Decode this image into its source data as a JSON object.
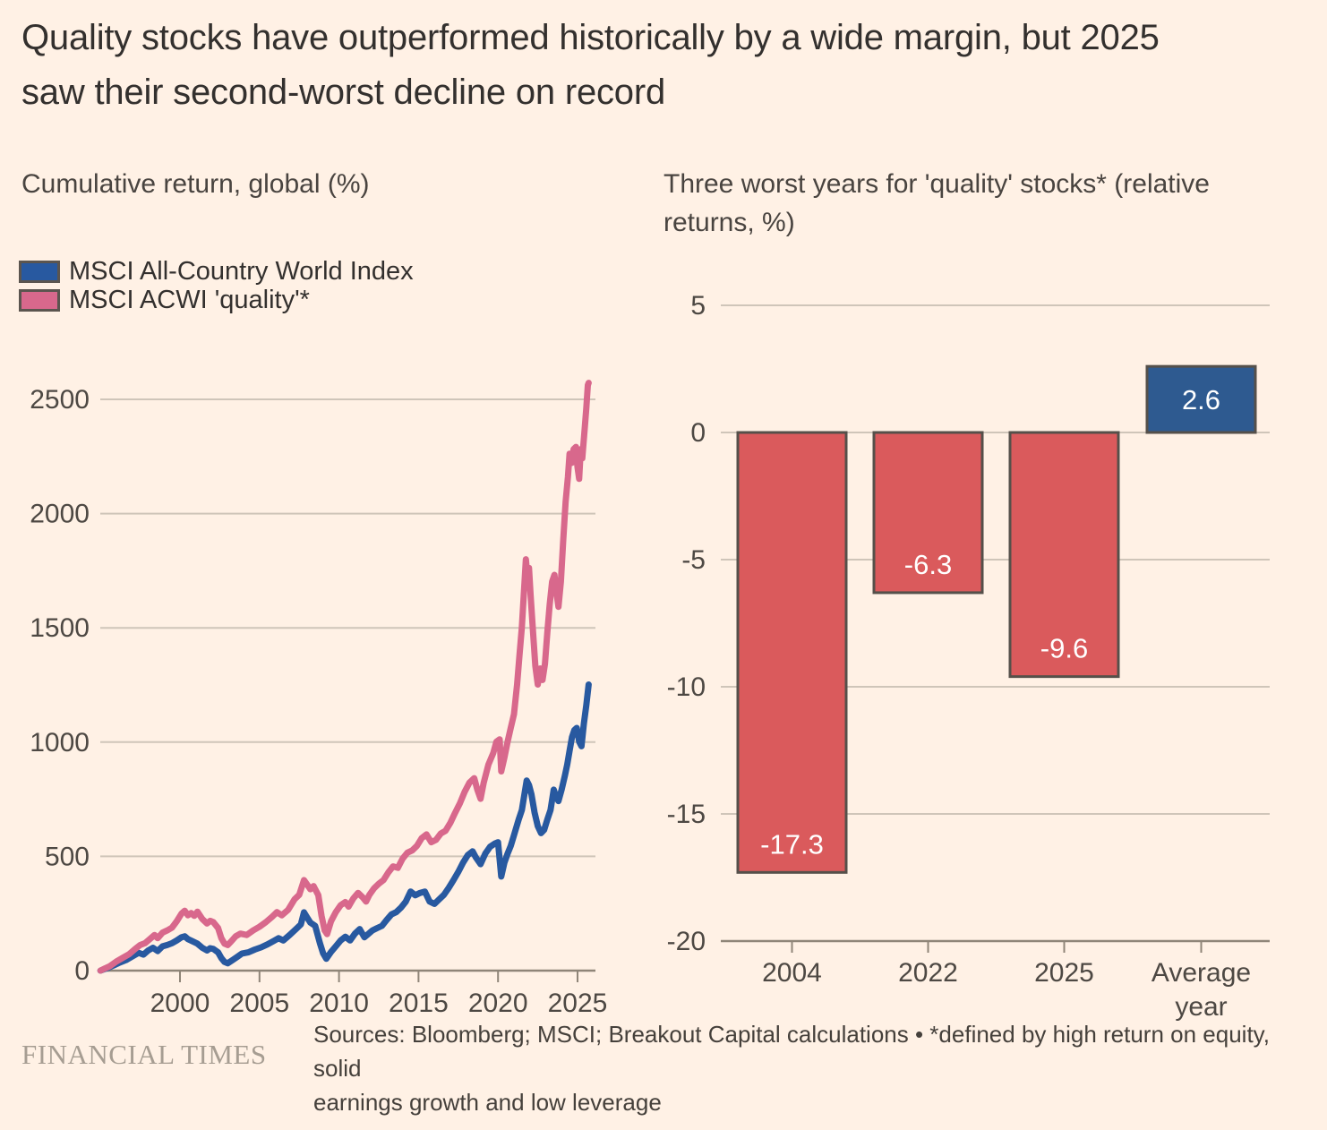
{
  "title": "Quality stocks have outperformed historically by a wide margin, but 2025 saw their second-worst decline on record",
  "title_lines": [
    "Quality stocks have outperformed historically by a wide margin, but 2025",
    "saw their second-worst decline on record"
  ],
  "colors": {
    "background": "#fff1e5",
    "text_dark": "#33302e",
    "text_gray": "#494440",
    "grid": "#cfc5b9",
    "axis": "#8f8578",
    "line_blue": "#2859a0",
    "line_pink": "#d8688c",
    "bar_red": "#da5a5c",
    "bar_blue": "#2e5a90",
    "bar_border": "#55504a",
    "bar_label": "#ffffff",
    "ft_logo_gray": "#a69d92"
  },
  "legend": {
    "items": [
      {
        "label": "MSCI All-Country World Index",
        "color_key": "line_blue"
      },
      {
        "label": "MSCI ACWI 'quality'*",
        "color_key": "line_pink"
      }
    ]
  },
  "footer": {
    "logo": "FINANCIAL TIMES",
    "source": "Sources: Bloomberg; MSCI; Breakout Capital calculations • *defined by high return on equity, solid earnings growth and low leverage",
    "source_lines": [
      "Sources: Bloomberg; MSCI; Breakout Capital calculations • *defined by high return on equity, solid",
      "earnings growth and low leverage"
    ]
  },
  "chart_data": [
    {
      "type": "line",
      "title": "Cumulative return, global (%)",
      "x_range": [
        1995,
        2026.2
      ],
      "ylim": [
        0,
        2600
      ],
      "grid": true,
      "legend_position": "top-left",
      "x_ticks": [
        2000,
        2005,
        2010,
        2015,
        2020,
        2025
      ],
      "y_ticks": [
        0,
        500,
        1000,
        1500,
        2000,
        2500
      ],
      "series": [
        {
          "name": "MSCI All-Country World Index",
          "color_key": "line_blue",
          "points": [
            [
              1995,
              0
            ],
            [
              1995.4,
              10
            ],
            [
              1995.8,
              22
            ],
            [
              1996.2,
              35
            ],
            [
              1996.6,
              46
            ],
            [
              1997,
              62
            ],
            [
              1997.4,
              78
            ],
            [
              1997.7,
              70
            ],
            [
              1998,
              88
            ],
            [
              1998.3,
              100
            ],
            [
              1998.6,
              86
            ],
            [
              1998.9,
              106
            ],
            [
              1999.2,
              112
            ],
            [
              1999.5,
              120
            ],
            [
              1999.8,
              132
            ],
            [
              2000.1,
              146
            ],
            [
              2000.3,
              150
            ],
            [
              2000.5,
              138
            ],
            [
              2000.8,
              128
            ],
            [
              2001.1,
              118
            ],
            [
              2001.4,
              100
            ],
            [
              2001.7,
              88
            ],
            [
              2001.9,
              98
            ],
            [
              2002.1,
              95
            ],
            [
              2002.4,
              80
            ],
            [
              2002.6,
              55
            ],
            [
              2002.8,
              38
            ],
            [
              2003,
              32
            ],
            [
              2003.3,
              46
            ],
            [
              2003.6,
              60
            ],
            [
              2003.9,
              75
            ],
            [
              2004.3,
              80
            ],
            [
              2004.7,
              92
            ],
            [
              2005.1,
              102
            ],
            [
              2005.5,
              115
            ],
            [
              2005.9,
              130
            ],
            [
              2006.2,
              142
            ],
            [
              2006.5,
              132
            ],
            [
              2006.9,
              156
            ],
            [
              2007.3,
              182
            ],
            [
              2007.6,
              202
            ],
            [
              2007.8,
              255
            ],
            [
              2008,
              232
            ],
            [
              2008.2,
              210
            ],
            [
              2008.5,
              196
            ],
            [
              2008.8,
              120
            ],
            [
              2009,
              76
            ],
            [
              2009.2,
              52
            ],
            [
              2009.5,
              82
            ],
            [
              2009.8,
              106
            ],
            [
              2010.1,
              132
            ],
            [
              2010.4,
              148
            ],
            [
              2010.7,
              132
            ],
            [
              2011,
              162
            ],
            [
              2011.3,
              182
            ],
            [
              2011.6,
              146
            ],
            [
              2011.8,
              158
            ],
            [
              2012.1,
              176
            ],
            [
              2012.4,
              186
            ],
            [
              2012.7,
              196
            ],
            [
              2013,
              222
            ],
            [
              2013.3,
              246
            ],
            [
              2013.6,
              256
            ],
            [
              2013.9,
              276
            ],
            [
              2014.2,
              302
            ],
            [
              2014.5,
              346
            ],
            [
              2014.8,
              330
            ],
            [
              2015.1,
              340
            ],
            [
              2015.4,
              346
            ],
            [
              2015.7,
              302
            ],
            [
              2016,
              292
            ],
            [
              2016.3,
              312
            ],
            [
              2016.6,
              332
            ],
            [
              2016.9,
              362
            ],
            [
              2017.2,
              396
            ],
            [
              2017.5,
              432
            ],
            [
              2017.8,
              472
            ],
            [
              2018.1,
              506
            ],
            [
              2018.4,
              522
            ],
            [
              2018.6,
              496
            ],
            [
              2018.9,
              466
            ],
            [
              2019.2,
              512
            ],
            [
              2019.5,
              542
            ],
            [
              2019.8,
              556
            ],
            [
              2020,
              562
            ],
            [
              2020.2,
              412
            ],
            [
              2020.4,
              472
            ],
            [
              2020.6,
              512
            ],
            [
              2020.8,
              546
            ],
            [
              2021,
              592
            ],
            [
              2021.3,
              662
            ],
            [
              2021.5,
              702
            ],
            [
              2021.8,
              832
            ],
            [
              2021.95,
              812
            ],
            [
              2022.1,
              772
            ],
            [
              2022.3,
              692
            ],
            [
              2022.5,
              632
            ],
            [
              2022.7,
              602
            ],
            [
              2022.9,
              616
            ],
            [
              2023.1,
              662
            ],
            [
              2023.3,
              702
            ],
            [
              2023.5,
              792
            ],
            [
              2023.65,
              762
            ],
            [
              2023.8,
              742
            ],
            [
              2024,
              792
            ],
            [
              2024.2,
              852
            ],
            [
              2024.35,
              902
            ],
            [
              2024.5,
              962
            ],
            [
              2024.65,
              1022
            ],
            [
              2024.8,
              1052
            ],
            [
              2024.95,
              1062
            ],
            [
              2025.1,
              1002
            ],
            [
              2025.25,
              982
            ],
            [
              2025.4,
              1082
            ],
            [
              2025.55,
              1162
            ],
            [
              2025.7,
              1252
            ]
          ]
        },
        {
          "name": "MSCI ACWI 'quality'*",
          "color_key": "line_pink",
          "points": [
            [
              1995,
              0
            ],
            [
              1995.3,
              10
            ],
            [
              1995.6,
              20
            ],
            [
              1996,
              40
            ],
            [
              1996.4,
              56
            ],
            [
              1996.8,
              72
            ],
            [
              1997.2,
              96
            ],
            [
              1997.5,
              112
            ],
            [
              1997.8,
              120
            ],
            [
              1998.1,
              138
            ],
            [
              1998.4,
              156
            ],
            [
              1998.6,
              142
            ],
            [
              1998.9,
              166
            ],
            [
              1999.2,
              176
            ],
            [
              1999.5,
              188
            ],
            [
              1999.8,
              216
            ],
            [
              2000.1,
              250
            ],
            [
              2000.3,
              262
            ],
            [
              2000.5,
              242
            ],
            [
              2000.7,
              252
            ],
            [
              2000.9,
              240
            ],
            [
              2001.1,
              258
            ],
            [
              2001.4,
              226
            ],
            [
              2001.7,
              206
            ],
            [
              2001.9,
              218
            ],
            [
              2002.1,
              212
            ],
            [
              2002.4,
              186
            ],
            [
              2002.6,
              142
            ],
            [
              2002.8,
              118
            ],
            [
              2003,
              112
            ],
            [
              2003.2,
              126
            ],
            [
              2003.5,
              150
            ],
            [
              2003.8,
              162
            ],
            [
              2004.2,
              156
            ],
            [
              2004.6,
              176
            ],
            [
              2005,
              192
            ],
            [
              2005.4,
              212
            ],
            [
              2005.8,
              236
            ],
            [
              2006.1,
              256
            ],
            [
              2006.4,
              242
            ],
            [
              2006.8,
              266
            ],
            [
              2007.2,
              312
            ],
            [
              2007.5,
              332
            ],
            [
              2007.8,
              396
            ],
            [
              2008,
              376
            ],
            [
              2008.2,
              356
            ],
            [
              2008.4,
              370
            ],
            [
              2008.7,
              330
            ],
            [
              2008.9,
              240
            ],
            [
              2009.1,
              176
            ],
            [
              2009.25,
              160
            ],
            [
              2009.5,
              216
            ],
            [
              2009.8,
              256
            ],
            [
              2010.1,
              286
            ],
            [
              2010.4,
              300
            ],
            [
              2010.6,
              280
            ],
            [
              2010.9,
              316
            ],
            [
              2011.2,
              340
            ],
            [
              2011.5,
              320
            ],
            [
              2011.7,
              302
            ],
            [
              2011.9,
              330
            ],
            [
              2012.2,
              360
            ],
            [
              2012.5,
              380
            ],
            [
              2012.8,
              396
            ],
            [
              2013.1,
              430
            ],
            [
              2013.4,
              456
            ],
            [
              2013.7,
              450
            ],
            [
              2014,
              490
            ],
            [
              2014.3,
              516
            ],
            [
              2014.6,
              526
            ],
            [
              2014.9,
              546
            ],
            [
              2015.2,
              580
            ],
            [
              2015.5,
              596
            ],
            [
              2015.8,
              562
            ],
            [
              2016.1,
              572
            ],
            [
              2016.4,
              600
            ],
            [
              2016.7,
              612
            ],
            [
              2017,
              646
            ],
            [
              2017.3,
              690
            ],
            [
              2017.6,
              732
            ],
            [
              2017.9,
              782
            ],
            [
              2018.2,
              822
            ],
            [
              2018.5,
              842
            ],
            [
              2018.7,
              792
            ],
            [
              2018.9,
              752
            ],
            [
              2019.1,
              822
            ],
            [
              2019.4,
              902
            ],
            [
              2019.7,
              952
            ],
            [
              2019.9,
              1002
            ],
            [
              2020.1,
              1012
            ],
            [
              2020.2,
              872
            ],
            [
              2020.4,
              932
            ],
            [
              2020.6,
              1002
            ],
            [
              2020.8,
              1062
            ],
            [
              2021,
              1122
            ],
            [
              2021.2,
              1252
            ],
            [
              2021.35,
              1382
            ],
            [
              2021.5,
              1502
            ],
            [
              2021.6,
              1622
            ],
            [
              2021.75,
              1800
            ],
            [
              2021.85,
              1722
            ],
            [
              2021.95,
              1762
            ],
            [
              2022.05,
              1642
            ],
            [
              2022.2,
              1482
            ],
            [
              2022.35,
              1332
            ],
            [
              2022.5,
              1252
            ],
            [
              2022.65,
              1322
            ],
            [
              2022.8,
              1272
            ],
            [
              2022.95,
              1342
            ],
            [
              2023.1,
              1482
            ],
            [
              2023.25,
              1602
            ],
            [
              2023.4,
              1702
            ],
            [
              2023.55,
              1732
            ],
            [
              2023.7,
              1642
            ],
            [
              2023.8,
              1592
            ],
            [
              2023.95,
              1702
            ],
            [
              2024.1,
              1882
            ],
            [
              2024.25,
              2052
            ],
            [
              2024.4,
              2162
            ],
            [
              2024.5,
              2262
            ],
            [
              2024.65,
              2222
            ],
            [
              2024.75,
              2282
            ],
            [
              2024.9,
              2292
            ],
            [
              2025,
              2202
            ],
            [
              2025.1,
              2152
            ],
            [
              2025.2,
              2282
            ],
            [
              2025.3,
              2242
            ],
            [
              2025.45,
              2372
            ],
            [
              2025.55,
              2462
            ],
            [
              2025.65,
              2562
            ],
            [
              2025.7,
              2572
            ]
          ]
        }
      ]
    },
    {
      "type": "bar",
      "title": "Three worst years for 'quality' stocks* (relative returns, %)",
      "categories": [
        "2004",
        "2022",
        "2025",
        "Average year"
      ],
      "values": [
        -17.3,
        -6.3,
        -9.6,
        2.6
      ],
      "labels": [
        "-17.3",
        "-6.3",
        "-9.6",
        "2.6"
      ],
      "bar_color_keys": [
        "bar_red",
        "bar_red",
        "bar_red",
        "bar_blue"
      ],
      "y_ticks": [
        5,
        0,
        -5,
        -10,
        -15,
        -20
      ],
      "ylim": [
        -20,
        5
      ],
      "grid": true
    }
  ]
}
